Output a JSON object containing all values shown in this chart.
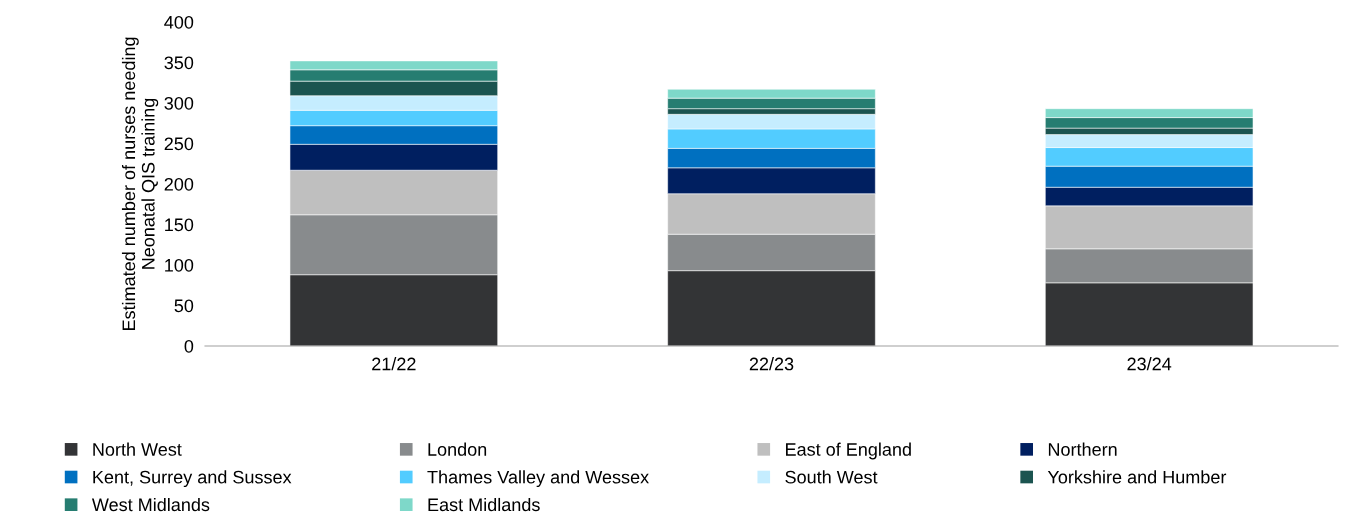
{
  "chart_data": {
    "type": "bar",
    "stacked": true,
    "ylabel": "Estimated number of nurses needing\nNeonatal QIS training",
    "categories": [
      "21/22",
      "22/23",
      "23/24"
    ],
    "series": [
      {
        "name": "North West",
        "color": "#333436",
        "values": [
          88,
          93,
          78
        ]
      },
      {
        "name": "London",
        "color": "#888b8d",
        "values": [
          74,
          45,
          42
        ]
      },
      {
        "name": "East of England",
        "color": "#bfbfbf",
        "values": [
          55,
          50,
          53
        ]
      },
      {
        "name": "Northern",
        "color": "#001f60",
        "values": [
          32,
          32,
          23
        ]
      },
      {
        "name": "Kent, Surrey and Sussex",
        "color": "#0070c0",
        "values": [
          23,
          24,
          26
        ]
      },
      {
        "name": "Thames Valley and Wessex",
        "color": "#52ccff",
        "values": [
          19,
          24,
          23
        ]
      },
      {
        "name": "South West",
        "color": "#c5edff",
        "values": [
          18,
          18,
          16
        ]
      },
      {
        "name": "Yorkshire and Humber",
        "color": "#1b5450",
        "values": [
          18,
          7,
          8
        ]
      },
      {
        "name": "West Midlands",
        "color": "#267d71",
        "values": [
          14,
          13,
          13
        ]
      },
      {
        "name": "East Midlands",
        "color": "#7ed8c9",
        "values": [
          11,
          11,
          11
        ]
      }
    ],
    "ylim": [
      0,
      400
    ],
    "yticks": [
      0,
      50,
      100,
      150,
      200,
      250,
      300,
      350,
      400
    ],
    "grid": false,
    "legend": "bottom"
  }
}
